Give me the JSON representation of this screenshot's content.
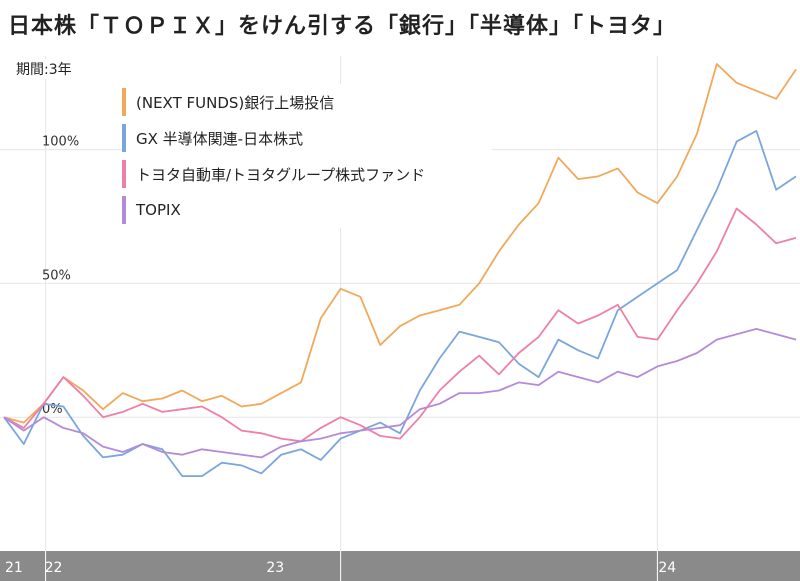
{
  "title": "日本株「ＴＯＰＩＸ」をけん引する「銀行」「半導体」「トヨタ」",
  "period_label": "期間:3年",
  "chart_data": {
    "type": "line",
    "title": "日本株「ＴＯＰＩＸ」をけん引する「銀行」「半導体」「トヨタ」",
    "xlabel": "",
    "ylabel": "",
    "x_ticks": [
      "21",
      "22",
      "23",
      "24"
    ],
    "y_ticks": [
      "0%",
      "50%",
      "100%"
    ],
    "y_tick_values": [
      0,
      50,
      100
    ],
    "ylim": [
      -50,
      135
    ],
    "xlim": [
      0,
      40
    ],
    "x_tick_positions": [
      0.5,
      2.5,
      13.7,
      33.5
    ],
    "grid": true,
    "legend_position": "top-left",
    "series": [
      {
        "name": "(NEXT FUNDS)銀行上場投信",
        "color": "#f0a95a",
        "x": [
          0,
          1,
          2,
          3,
          4,
          5,
          6,
          7,
          8,
          9,
          10,
          11,
          12,
          13,
          14,
          15,
          16,
          17,
          18,
          19,
          20,
          21,
          22,
          23,
          24,
          25,
          26,
          27,
          28,
          29,
          30,
          31,
          32,
          33,
          34,
          35,
          36,
          37,
          38,
          39,
          40
        ],
        "values": [
          0,
          -2,
          5,
          15,
          10,
          3,
          9,
          6,
          7,
          10,
          6,
          8,
          4,
          5,
          9,
          13,
          37,
          48,
          45,
          27,
          34,
          38,
          40,
          42,
          50,
          62,
          72,
          80,
          97,
          89,
          90,
          93,
          84,
          80,
          90,
          106,
          132,
          125,
          122,
          119,
          130
        ]
      },
      {
        "name": "GX 半導体関連-日本株式",
        "color": "#7aa6dd",
        "x": [
          0,
          1,
          2,
          3,
          4,
          5,
          6,
          7,
          8,
          9,
          10,
          11,
          12,
          13,
          14,
          15,
          16,
          17,
          18,
          19,
          20,
          21,
          22,
          23,
          24,
          25,
          26,
          27,
          28,
          29,
          30,
          31,
          32,
          33,
          34,
          35,
          36,
          37,
          38,
          39,
          40
        ],
        "values": [
          0,
          -10,
          5,
          4,
          -7,
          -15,
          -14,
          -10,
          -12,
          -22,
          -22,
          -17,
          -18,
          -21,
          -14,
          -12,
          -16,
          -8,
          -5,
          -2,
          -6,
          10,
          22,
          32,
          30,
          28,
          20,
          15,
          29,
          25,
          22,
          40,
          45,
          50,
          55,
          70,
          85,
          103,
          107,
          85,
          90
        ]
      },
      {
        "name": "トヨタ自動車/トヨタグループ株式ファンド",
        "color": "#ee7fa8",
        "x": [
          0,
          1,
          2,
          3,
          4,
          5,
          6,
          7,
          8,
          9,
          10,
          11,
          12,
          13,
          14,
          15,
          16,
          17,
          18,
          19,
          20,
          21,
          22,
          23,
          24,
          25,
          26,
          27,
          28,
          29,
          30,
          31,
          32,
          33,
          34,
          35,
          36,
          37,
          38,
          39,
          40
        ],
        "values": [
          0,
          -4,
          5,
          15,
          8,
          0,
          2,
          5,
          2,
          3,
          4,
          0,
          -5,
          -6,
          -8,
          -9,
          -4,
          0,
          -3,
          -7,
          -8,
          0,
          10,
          17,
          23,
          16,
          24,
          30,
          40,
          35,
          38,
          42,
          30,
          29,
          40,
          50,
          62,
          78,
          72,
          65,
          67
        ]
      },
      {
        "name": "TOPIX",
        "color": "#b58ad8",
        "x": [
          0,
          1,
          2,
          3,
          4,
          5,
          6,
          7,
          8,
          9,
          10,
          11,
          12,
          13,
          14,
          15,
          16,
          17,
          18,
          19,
          20,
          21,
          22,
          23,
          24,
          25,
          26,
          27,
          28,
          29,
          30,
          31,
          32,
          33,
          34,
          35,
          36,
          37,
          38,
          39,
          40
        ],
        "values": [
          0,
          -5,
          0,
          -4,
          -6,
          -11,
          -13,
          -10,
          -13,
          -14,
          -12,
          -13,
          -14,
          -15,
          -11,
          -9,
          -8,
          -6,
          -5,
          -4,
          -3,
          3,
          5,
          9,
          9,
          10,
          13,
          12,
          17,
          15,
          13,
          17,
          15,
          19,
          21,
          24,
          29,
          31,
          33,
          31,
          29
        ]
      }
    ]
  }
}
